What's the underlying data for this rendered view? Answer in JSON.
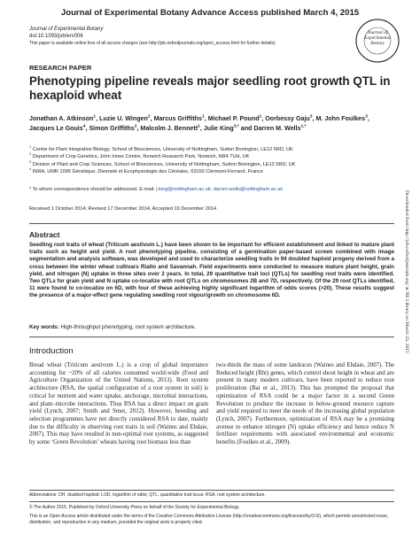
{
  "header": {
    "banner": "Journal of Experimental Botany Advance Access published March 4, 2015",
    "journal": "Journal of Experimental Botany",
    "doi": "doi:10.1093/jxb/erv006",
    "access_note": "This paper is available online free of all access charges (see http://jxb.oxfordjournals.org/open_access.html for further details)",
    "logo": "Journal of Experimental Botany"
  },
  "article": {
    "section": "RESEARCH PAPER",
    "title": "Phenotyping pipeline reveals major seedling root growth QTL in hexaploid wheat",
    "authors": [
      {
        "name": "Jonathan A. Atkinson",
        "sup": "1",
        "after": ","
      },
      {
        "name": "Luzie U. Wingen",
        "sup": "2",
        "after": ","
      },
      {
        "name": "Marcus Griffiths",
        "sup": "1",
        "after": ","
      },
      {
        "name": "Michael P. Pound",
        "sup": "1",
        "after": ","
      },
      {
        "name": "Oorbessy Gaju",
        "sup": "3",
        "after": ","
      },
      {
        "name": "M. John Foulkes",
        "sup": "3",
        "after": ","
      },
      {
        "name": "Jacques Le Gouis",
        "sup": "4",
        "after": ","
      },
      {
        "name": "Simon Griffiths",
        "sup": "2",
        "after": ","
      },
      {
        "name": "Malcolm J. Bennett",
        "sup": "1",
        "after": ","
      },
      {
        "name": "Julie King",
        "sup": "3,*",
        "after": ""
      },
      {
        "name": "and Darren M. Wells",
        "sup": "1,*",
        "after": ""
      }
    ],
    "affiliations": [
      {
        "num": "1",
        "text": "Centre for Plant Integrative Biology, School of Biosciences, University of Nottingham, Sutton Bonington, LE12 5RD, UK"
      },
      {
        "num": "2",
        "text": "Department of Crop Genetics, John Innes Centre, Norwich Research Park, Norwich, NR4 7UH, UK"
      },
      {
        "num": "3",
        "text": "Division of Plant and Crop Sciences, School of Biosciences, University of Nottingham, Sutton Bonington, LE12 5RD, UK"
      },
      {
        "num": "4",
        "text": "INRA, UMR 1095 Génétique, Diversité et Ecophysiologie des Céréales, 63100 Clermont-Ferrand, France"
      }
    ],
    "correspondence": {
      "text": "* To whom correspondence should be addressed. E-mail:",
      "emails": "j.king@nottingham.ac.uk; darren.wells@nottingham.ac.uk"
    },
    "dates": "Received 1 October 2014; Revised 17 December 2014; Accepted 19 December 2014",
    "abstract_heading": "Abstract",
    "abstract": "Seedling root traits of wheat (Triticum aestivum L.) have been shown to be important for efficient establishment and linked to mature plant traits such as height and yield. A root phenotyping pipeline, consisting of a germination paper-based screen combined with image segmentation and analysis software, was developed and used to characterize seedling traits in 94 doubled haploid progeny derived from a cross between the winter wheat cultivars Rialto and Savannah. Field experiments were conducted to measure mature plant height, grain yield, and nitrogen (N) uptake in three sites over 2 years. In total, 29 quantitative trait loci (QTLs) for seedling root traits were identified. Two QTLs for grain yield and N uptake co-localize with root QTLs on chromosomes 2B and 7D, respectively. Of the 29 root QTLs identified, 11 were found to co-localize on 6D, with four of these achieving highly significant logarithm of odds scores (>20). These results suggest the presence of a major-effect gene regulating seedling root vigour/growth on chromosome 6D.",
    "keywords_label": "Key words:",
    "keywords": "High-throughput phenotyping, root system architecture.",
    "intro_heading": "Introduction",
    "intro_left": "Bread wheat (Triticum aestivum L.) is a crop of global importance accounting for ~20% of all calories consumed world-wide (Food and Agriculture Organization of the United Nations, 2013). Root system architecture (RSA, the spatial configuration of a root system in soil) is critical for nutrient and water uptake, anchorage, microbial interactions, and plant–microbe interactions. Thus RSA has a direct impact on grain yield (Lynch, 2007; Smith and Smet, 2012). However, breeding and selection programmes have not directly considered RSA to date, mainly due to the difficulty in observing root traits in soil (Waines and Ehdaie, 2007). This may have resulted in non-optimal root systems, as suggested by some ‘Green Revolution’ wheats having root biomass less than",
    "intro_right": "two-thirds the mass of some landraces (Waines and Ehdaie, 2007). The Reduced height (Rht) genes, which control shoot height in wheat and are present in many modern cultivars, have been reported to reduce root proliferation (Bai et al., 2013). This has prompted the proposal that optimization of RSA could be a major factor in a second Green Revolution to produce the increase in below-ground resource capture and yield required to meet the needs of the increasing global population (Lynch, 2007). Furthermore, optimization of RSA may be a promising avenue to enhance nitrogen (N) uptake efficiency and hence reduce N fertilizer requirements with associated environmental and economic benefits (Foulkes et al., 2009)."
  },
  "footer": {
    "abbreviations": "Abbreviations: DH, doubled haploid; LOD, logarithm of odds; QTL, quantitative trait locus; RSA, root system architecture.",
    "copyright": "© The Author 2015. Published by Oxford University Press on behalf of the Society for Experimental Biology.",
    "license": "This is an Open Access article distributed under the terms of the Creative Commons Attribution License (http://creativecommons.org/licenses/by/3.0/), which permits unrestricted reuse, distribution, and reproduction in any medium, provided the original work is properly cited."
  },
  "side_note": "Downloaded from http://jxb.oxfordjournals.org/ at NE Library on March 23, 2015"
}
